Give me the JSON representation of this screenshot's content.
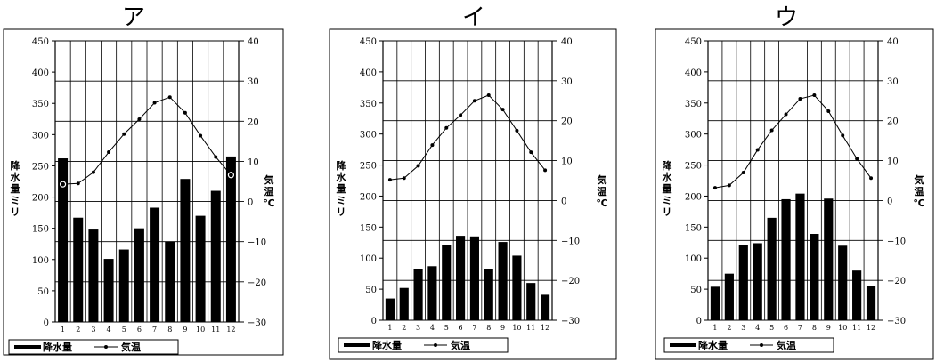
{
  "legend": {
    "precip_label": "降水量",
    "temp_label": "気温"
  },
  "axis_labels": {
    "left": [
      "降",
      "水",
      "量",
      "ミ",
      "リ"
    ],
    "right": [
      "気",
      "温",
      "℃"
    ]
  },
  "axis_ticks": {
    "precip": [
      "0",
      "50",
      "100",
      "150",
      "200",
      "250",
      "300",
      "350",
      "400",
      "450"
    ],
    "temp": [
      "−30",
      "−20",
      "−10",
      "0",
      "10",
      "20",
      "30",
      "40"
    ]
  },
  "chart_data": [
    {
      "type": "bar",
      "title": "ア",
      "categories": [
        "1",
        "2",
        "3",
        "4",
        "5",
        "6",
        "7",
        "8",
        "9",
        "10",
        "11",
        "12"
      ],
      "series": [
        {
          "name": "降水量",
          "type": "bar",
          "values": [
            262,
            167,
            148,
            101,
            116,
            150,
            183,
            129,
            229,
            170,
            210,
            265
          ]
        },
        {
          "name": "気温",
          "type": "line",
          "values": [
            4.3,
            4.5,
            7.3,
            12.3,
            16.8,
            20.5,
            24.6,
            26.0,
            22.1,
            16.4,
            11.1,
            6.6
          ]
        }
      ],
      "ylim_left": [
        0,
        450
      ],
      "ylim_right": [
        -30,
        40
      ],
      "grid": true,
      "legend_position": "bottom-left"
    },
    {
      "type": "bar",
      "title": "イ",
      "categories": [
        "1",
        "2",
        "3",
        "4",
        "5",
        "6",
        "7",
        "8",
        "9",
        "10",
        "11",
        "12"
      ],
      "series": [
        {
          "name": "降水量",
          "type": "bar",
          "values": [
            35,
            52,
            82,
            87,
            121,
            136,
            135,
            83,
            126,
            104,
            60,
            41
          ]
        },
        {
          "name": "気温",
          "type": "line",
          "values": [
            5.2,
            5.6,
            8.7,
            13.9,
            18.2,
            21.4,
            25.0,
            26.4,
            22.8,
            17.5,
            12.1,
            7.6
          ]
        }
      ],
      "ylim_left": [
        0,
        450
      ],
      "ylim_right": [
        -30,
        40
      ],
      "grid": true,
      "legend_position": "bottom-left"
    },
    {
      "type": "bar",
      "title": "ウ",
      "categories": [
        "1",
        "2",
        "3",
        "4",
        "5",
        "6",
        "7",
        "8",
        "9",
        "10",
        "11",
        "12"
      ],
      "series": [
        {
          "name": "降水量",
          "type": "bar",
          "values": [
            54,
            75,
            121,
            124,
            165,
            195,
            204,
            139,
            196,
            120,
            80,
            55
          ]
        },
        {
          "name": "気温",
          "type": "line",
          "values": [
            3.2,
            3.8,
            7.0,
            12.7,
            17.6,
            21.6,
            25.5,
            26.4,
            22.4,
            16.3,
            10.5,
            5.6
          ]
        }
      ],
      "ylim_left": [
        0,
        450
      ],
      "ylim_right": [
        -30,
        40
      ],
      "grid": true,
      "legend_position": "bottom-left"
    }
  ]
}
